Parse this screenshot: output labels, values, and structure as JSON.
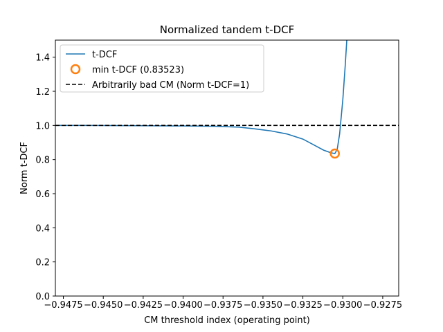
{
  "chart_data": {
    "type": "line",
    "title": "Normalized tandem t-DCF",
    "xlabel": "CM threshold index (operating point)",
    "ylabel": "Norm t-DCF",
    "xlim": [
      -0.948,
      -0.9265
    ],
    "ylim": [
      0.0,
      1.5
    ],
    "xticks": [
      -0.9475,
      -0.945,
      -0.9425,
      -0.94,
      -0.9375,
      -0.935,
      -0.9325,
      -0.93,
      -0.9275
    ],
    "xtick_labels": [
      "−0.9475",
      "−0.9450",
      "−0.9425",
      "−0.9400",
      "−0.9375",
      "−0.9350",
      "−0.9325",
      "−0.9300",
      "−0.9275"
    ],
    "yticks": [
      0.0,
      0.2,
      0.4,
      0.6,
      0.8,
      1.0,
      1.2,
      1.4
    ],
    "ytick_labels": [
      "0.0",
      "0.2",
      "0.4",
      "0.6",
      "0.8",
      "1.0",
      "1.2",
      "1.4"
    ],
    "grid": false,
    "legend_placement": "upper-left",
    "series": [
      {
        "name": "t-DCF",
        "kind": "line",
        "color": "#1f77b4",
        "x": [
          -0.948,
          -0.946,
          -0.944,
          -0.942,
          -0.94,
          -0.938,
          -0.9365,
          -0.9355,
          -0.9345,
          -0.9335,
          -0.9325,
          -0.9318,
          -0.9312,
          -0.93075,
          -0.9305,
          -0.93035,
          -0.9302,
          -0.93,
          -0.92985,
          -0.92975
        ],
        "y": [
          1.0,
          1.0,
          0.999,
          0.998,
          0.997,
          0.995,
          0.99,
          0.98,
          0.968,
          0.95,
          0.92,
          0.885,
          0.855,
          0.84,
          0.835,
          0.86,
          0.95,
          1.15,
          1.35,
          1.5
        ]
      },
      {
        "name": "min t-DCF (0.83523)",
        "kind": "marker",
        "color": "#ff7f0e",
        "x": [
          -0.9305
        ],
        "y": [
          0.83523
        ]
      },
      {
        "name": "Arbitrarily bad CM (Norm t-DCF=1)",
        "kind": "hline",
        "color": "#000000",
        "y": 1.0
      }
    ]
  }
}
